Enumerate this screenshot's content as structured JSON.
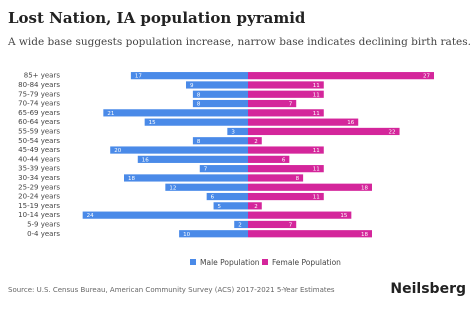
{
  "chart_data": {
    "type": "population-pyramid",
    "title": "Lost Nation, IA population pyramid",
    "subtitle": "A wide base suggests population increase, narrow base indicates declining birth rates.",
    "categories": [
      "85+ years",
      "80-84 years",
      "75-79 years",
      "70-74 years",
      "65-69 years",
      "60-64 years",
      "55-59 years",
      "50-54 years",
      "45-49 years",
      "40-44 years",
      "35-39 years",
      "30-34 years",
      "25-29 years",
      "20-24 years",
      "15-19 years",
      "10-14 years",
      "5-9 years",
      "0-4 years"
    ],
    "series": [
      {
        "name": "Male Population",
        "color": "#4a8ae8",
        "values": [
          17,
          9,
          8,
          8,
          21,
          15,
          3,
          8,
          20,
          16,
          7,
          18,
          12,
          6,
          5,
          24,
          2,
          10
        ]
      },
      {
        "name": "Female Population",
        "color": "#d4269b",
        "values": [
          27,
          11,
          11,
          7,
          11,
          16,
          22,
          2,
          11,
          6,
          11,
          8,
          18,
          11,
          2,
          15,
          7,
          18
        ]
      }
    ],
    "xlim": [
      0,
      27
    ],
    "source": "Source: U.S. Census Bureau, American Community Survey (ACS) 2017-2021 5-Year Estimates",
    "brand": "Neilsberg"
  }
}
